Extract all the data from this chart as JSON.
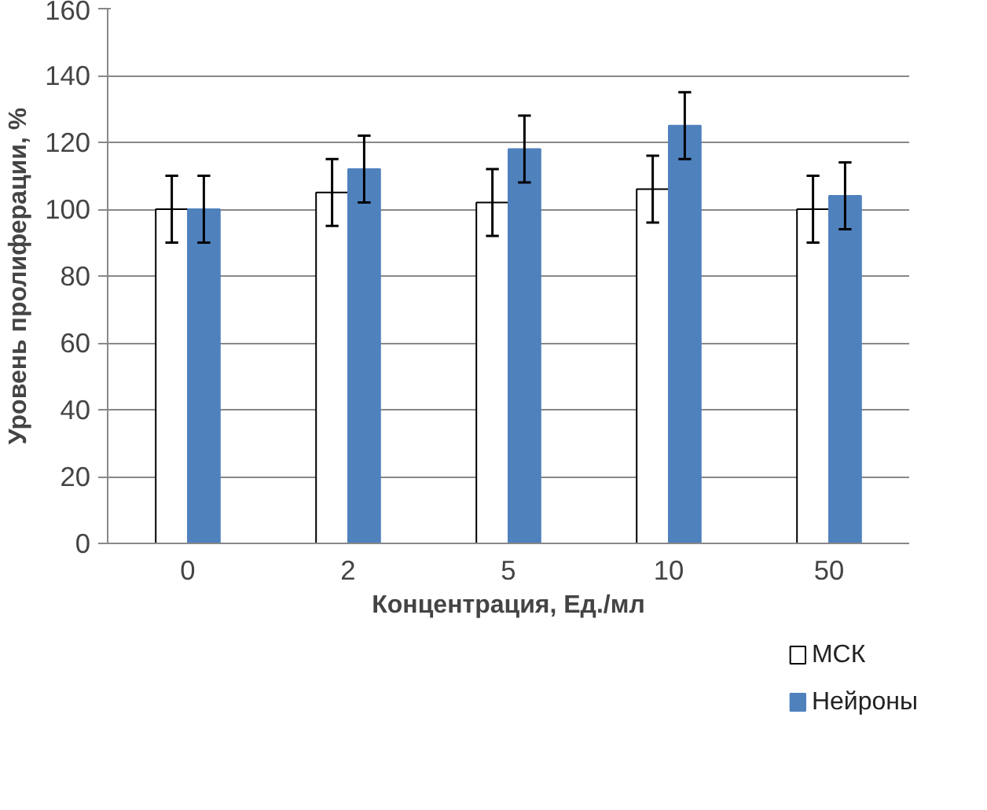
{
  "chart_data": {
    "type": "bar",
    "xlabel": "Концентрация, Ед./мл",
    "ylabel": "Уровень пролиферации, %",
    "categories": [
      "0",
      "2",
      "5",
      "10",
      "50"
    ],
    "series": [
      {
        "name": "МСК",
        "color": "#ffffff",
        "values": [
          100,
          105,
          102,
          106,
          100
        ],
        "errors": [
          10,
          10,
          10,
          10,
          10
        ]
      },
      {
        "name": "Нейроны",
        "color": "#4f81bd",
        "values": [
          100,
          112,
          118,
          125,
          104
        ],
        "errors": [
          10,
          10,
          10,
          10,
          10
        ]
      }
    ],
    "ylim": [
      0,
      160
    ],
    "yticks": [
      0,
      20,
      40,
      60,
      80,
      100,
      120,
      140,
      160
    ],
    "grid": "y",
    "legend": "bottom right"
  }
}
